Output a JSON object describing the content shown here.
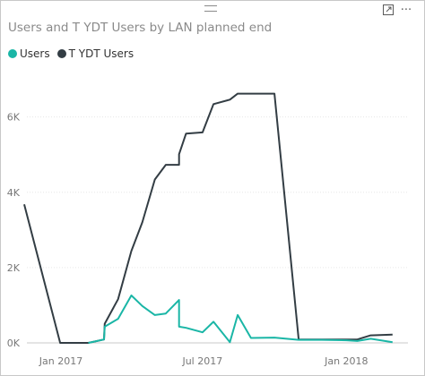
{
  "header": {
    "expand_icon": "focus-mode-icon",
    "more_icon": "more-options-icon",
    "more_glyph": "···"
  },
  "chart_data": {
    "type": "line",
    "title": "Users and T YDT Users by LAN planned end",
    "xlabel": "",
    "ylabel": "",
    "grid": true,
    "legend_position": "top-left",
    "x_ticks": [
      "Jan 2017",
      "Jul 2017",
      "Jan 2018"
    ],
    "y_ticks": [
      "0K",
      "2K",
      "4K",
      "6K"
    ],
    "ylim": [
      0,
      6800
    ],
    "x": [
      "2016-11-15",
      "2016-12-31",
      "2017-02-05",
      "2017-02-25",
      "2017-02-26",
      "2017-03-15",
      "2017-04-01",
      "2017-04-15",
      "2017-05-01",
      "2017-05-15",
      "2017-06-01",
      "2017-06-01",
      "2017-06-10",
      "2017-07-01",
      "2017-07-15",
      "2017-08-05",
      "2017-08-15",
      "2017-09-01",
      "2017-10-01",
      "2017-11-01",
      "2017-12-01",
      "2018-01-01",
      "2018-01-15",
      "2018-02-01",
      "2018-03-01"
    ],
    "series": [
      {
        "name": "Users",
        "color": "#1ab6a6",
        "values": [
          null,
          null,
          0,
          90,
          430,
          640,
          1260,
          980,
          740,
          780,
          1140,
          430,
          400,
          280,
          560,
          20,
          740,
          130,
          140,
          80,
          80,
          70,
          50,
          110,
          20
        ]
      },
      {
        "name": "T YDT Users",
        "color": "#333d44",
        "values": [
          3680,
          0,
          0,
          90,
          510,
          1160,
          2440,
          3200,
          4340,
          4730,
          4730,
          5010,
          5560,
          5590,
          6340,
          6460,
          6620,
          6620,
          6620,
          90,
          90,
          90,
          90,
          200,
          220
        ]
      }
    ]
  }
}
